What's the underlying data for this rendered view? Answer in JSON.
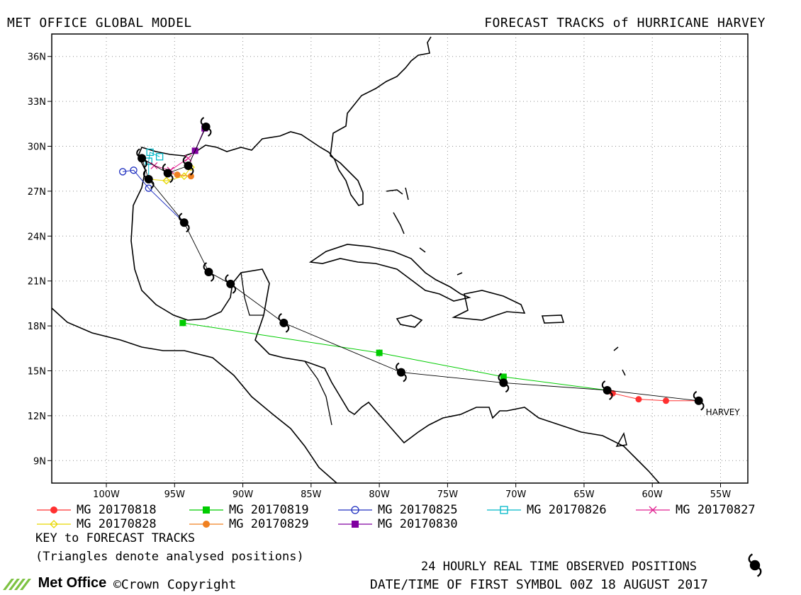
{
  "header": {
    "left_title": "MET OFFICE GLOBAL MODEL",
    "right_title": "FORECAST TRACKS of HURRICANE HARVEY"
  },
  "map": {
    "lon_range": [
      -104,
      -53
    ],
    "lat_range": [
      7.5,
      37.5
    ],
    "lat_ticks": [
      "36N",
      "33N",
      "30N",
      "27N",
      "24N",
      "21N",
      "18N",
      "15N",
      "12N",
      "9N"
    ],
    "lon_ticks": [
      "100W",
      "95W",
      "90W",
      "85W",
      "80W",
      "75W",
      "70W",
      "65W",
      "60W",
      "55W"
    ],
    "storm_label": "HARVEY"
  },
  "observed_track": [
    [
      -56.6,
      13.0
    ],
    [
      -63.3,
      13.7
    ],
    [
      -70.9,
      14.2
    ],
    [
      -78.4,
      14.9
    ],
    [
      -87.0,
      18.2
    ],
    [
      -90.9,
      20.8
    ],
    [
      -92.5,
      21.6
    ],
    [
      -94.3,
      24.9
    ],
    [
      -96.9,
      27.8
    ],
    [
      -97.4,
      29.2
    ],
    [
      -95.5,
      28.2
    ],
    [
      -94.0,
      28.7
    ],
    [
      -92.7,
      31.3
    ]
  ],
  "forecast_tracks": [
    {
      "name": "MG 20170818",
      "color": "#ff3030",
      "marker": "dot",
      "points": [
        [
          -56.6,
          13.0
        ],
        [
          -59.0,
          13.0
        ],
        [
          -61.0,
          13.1
        ],
        [
          -62.9,
          13.5
        ]
      ]
    },
    {
      "name": "MG 20170819",
      "color": "#00cc00",
      "marker": "square",
      "points": [
        [
          -63.3,
          13.7
        ],
        [
          -70.9,
          14.6
        ],
        [
          -80.0,
          16.2
        ],
        [
          -94.4,
          18.2
        ]
      ]
    },
    {
      "name": "MG 20170825",
      "color": "#2030c0",
      "marker": "circle",
      "points": [
        [
          -94.3,
          24.9
        ],
        [
          -96.9,
          27.2
        ],
        [
          -98.0,
          28.4
        ],
        [
          -98.8,
          28.3
        ]
      ]
    },
    {
      "name": "MG 20170826",
      "color": "#00b8c8",
      "marker": "opensquare",
      "points": [
        [
          -96.9,
          27.8
        ],
        [
          -96.9,
          29.0
        ],
        [
          -96.8,
          29.6
        ],
        [
          -96.1,
          29.3
        ]
      ]
    },
    {
      "name": "MG 20170827",
      "color": "#e02090",
      "marker": "x",
      "points": [
        [
          -97.4,
          29.2
        ],
        [
          -96.5,
          28.7
        ],
        [
          -95.3,
          28.4
        ],
        [
          -94.0,
          29.2
        ]
      ]
    },
    {
      "name": "MG 20170828",
      "color": "#e8d800",
      "marker": "diamond",
      "points": [
        [
          -96.9,
          27.8
        ],
        [
          -95.6,
          27.7
        ],
        [
          -94.3,
          28.0
        ],
        [
          -93.8,
          28.6
        ]
      ]
    },
    {
      "name": "MG 20170829",
      "color": "#f08020",
      "marker": "dot",
      "points": [
        [
          -95.5,
          28.2
        ],
        [
          -94.8,
          28.1
        ],
        [
          -93.8,
          28.0
        ]
      ]
    },
    {
      "name": "MG 20170830",
      "color": "#8000a0",
      "marker": "square",
      "points": [
        [
          -94.0,
          28.7
        ],
        [
          -93.5,
          29.7
        ],
        [
          -92.8,
          31.2
        ]
      ]
    }
  ],
  "legend_notes": {
    "key": "KEY to FORECAST TRACKS",
    "triangles": "(Triangles denote analysed positions)"
  },
  "footer": {
    "observed": "24 HOURLY REAL TIME OBSERVED POSITIONS",
    "date": "DATE/TIME OF FIRST SYMBOL 00Z 18 AUGUST 2017",
    "logo": "Met Office",
    "copyright": "©Crown Copyright"
  },
  "colors": {
    "coast": "#000000",
    "grid": "#909090"
  }
}
